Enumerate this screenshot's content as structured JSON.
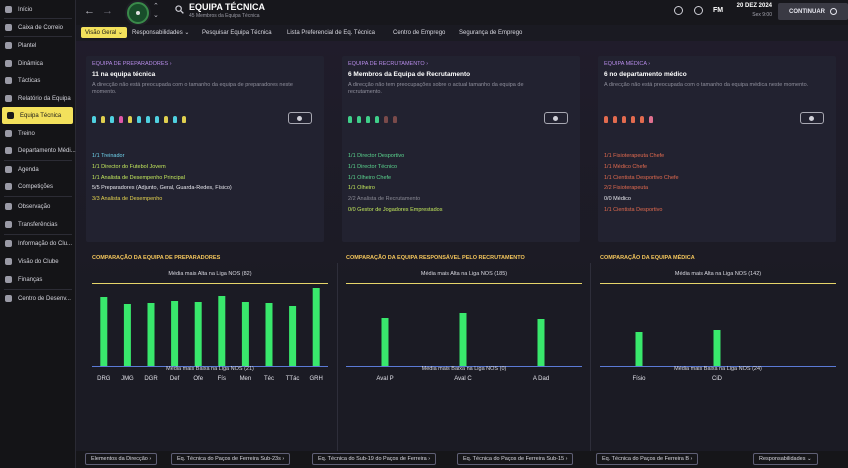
{
  "sidebar": {
    "items": [
      {
        "label": "Início",
        "icon": "home-icon"
      },
      {
        "label": "Caixa de Correio",
        "icon": "mail-icon"
      },
      {
        "label": "Plantel",
        "icon": "shirt-icon"
      },
      {
        "label": "Dinâmica",
        "icon": "dynamics-icon"
      },
      {
        "label": "Tácticas",
        "icon": "tactics-icon"
      },
      {
        "label": "Relatório da Equipa",
        "icon": "report-icon"
      },
      {
        "label": "Equipa Técnica",
        "icon": "staff-icon"
      },
      {
        "label": "Treino",
        "icon": "training-icon"
      },
      {
        "label": "Departamento Médi...",
        "icon": "medical-icon"
      },
      {
        "label": "Agenda",
        "icon": "calendar-icon"
      },
      {
        "label": "Competições",
        "icon": "trophy-icon"
      },
      {
        "label": "Observação",
        "icon": "scouting-icon"
      },
      {
        "label": "Transferências",
        "icon": "transfer-icon"
      },
      {
        "label": "Informação do Clu...",
        "icon": "club-info-icon"
      },
      {
        "label": "Visão do Clube",
        "icon": "club-vision-icon"
      },
      {
        "label": "Finanças",
        "icon": "finance-icon"
      },
      {
        "label": "Centro de Desenv...",
        "icon": "development-icon"
      }
    ]
  },
  "header": {
    "title": "EQUIPA TÉCNICA",
    "subtitle": "45 Membros da Equipa Técnica",
    "date": "20 DEZ 2024",
    "day": "Sex 9:00",
    "continue_label": "CONTINUAR",
    "fm_logo": "FM"
  },
  "tabs": [
    {
      "label": "Visão Geral ⌄"
    },
    {
      "label": "Responsabilidades ⌄"
    },
    {
      "label": "Pesquisar Equipa Técnica"
    },
    {
      "label": "Lista Preferencial de Eq. Técnica"
    },
    {
      "label": "Centro de Emprego"
    },
    {
      "label": "Segurança de Emprego"
    }
  ],
  "cards": [
    {
      "link": "EQUIPA DE PREPARADORES ›",
      "link_color": "#b58ae6",
      "title": "11 na equipa técnica",
      "desc": "A direcção não está preocupada com o tamanho da equipa de preparadores neste momento.",
      "avatar_colors": [
        "#4fd1e0",
        "#e0d04f",
        "#4fd1e0",
        "#e057a8",
        "#e0d04f",
        "#4fd1e0",
        "#4fd1e0",
        "#4fd1e0",
        "#e0d04f",
        "#4fd1e0",
        "#e0d04f"
      ],
      "lines": [
        {
          "text": "1/1 Treinador",
          "color": "#6fd3ec"
        },
        {
          "text": "1/1 Director do Futebol Jovem",
          "color": "#c3e85c"
        },
        {
          "text": "1/1 Analista de Desempenho Principal",
          "color": "#c3e85c"
        },
        {
          "text": "5/5 Preparadores (Adjunto, Geral, Guarda-Redes, Físico)",
          "color": "#e8e8ee"
        },
        {
          "text": "3/3 Analista de Desempenho",
          "color": "#e6d44f"
        }
      ]
    },
    {
      "link": "EQUIPA DE RECRUTAMENTO ›",
      "link_color": "#b58ae6",
      "title": "6 Membros da Equipa de Recrutamento",
      "desc": "A direcção não tem preocupações sobre o actual tamanho da equipa de recrutamento.",
      "avatar_colors": [
        "#3fd08a",
        "#3fd08a",
        "#3fd08a",
        "#3fd08a",
        "#7a4a4a",
        "#7a4a4a"
      ],
      "lines": [
        {
          "text": "1/1 Director Desportivo",
          "color": "#5bd68f"
        },
        {
          "text": "1/1 Director Técnico",
          "color": "#5bd68f"
        },
        {
          "text": "1/1 Olheiro Chefe",
          "color": "#5bd68f"
        },
        {
          "text": "1/1 Olheiro",
          "color": "#c3e85c"
        },
        {
          "text": "2/2 Analista de Recrutamento",
          "color": "#8a8a94"
        },
        {
          "text": "0/0 Gestor de Jogadores Emprestados",
          "color": "#c3e85c"
        }
      ]
    },
    {
      "link": "EQUIPA MÉDICA ›",
      "link_color": "#b58ae6",
      "title": "6 no departamento médico",
      "desc": "A direcção não está preocupada com o tamanho da equipa médica neste momento.",
      "avatar_colors": [
        "#e36b4f",
        "#e36b4f",
        "#e36b4f",
        "#e36b4f",
        "#e36b4f",
        "#e0708f"
      ],
      "lines": [
        {
          "text": "1/1 Fisioterapeuta Chefe",
          "color": "#e36b4f"
        },
        {
          "text": "1/1 Médico Chefe",
          "color": "#e36b4f"
        },
        {
          "text": "1/1 Cientista Desportivo Chefe",
          "color": "#e36b4f"
        },
        {
          "text": "2/2 Fisioterapeuta",
          "color": "#e36b4f"
        },
        {
          "text": "0/0 Médico",
          "color": "#e8e8ee"
        },
        {
          "text": "1/1 Cientista Desportivo",
          "color": "#e36b4f"
        }
      ]
    }
  ],
  "comparisons": [
    {
      "title": "COMPARAÇÃO DA EQUIPA DE PREPARADORES",
      "avg_high": "Média mais Alta na Liga NOS (82)",
      "avg_low": "Média mais Baixa na Liga NOS (21)"
    },
    {
      "title": "COMPARAÇÃO DA EQUIPA RESPONSÁVEL PELO RECRUTAMENTO",
      "avg_high": "Média mais Alta na Liga NOS (185)",
      "avg_low": "Média mais Baixa na Liga NOS (0)"
    },
    {
      "title": "COMPARAÇÃO DA EQUIPA MÉDICA",
      "avg_high": "Média mais Alta na Liga NOS (142)",
      "avg_low": "Média mais Baixa na Liga NOS (24)"
    }
  ],
  "chart_data": [
    {
      "type": "bar",
      "categories": [
        "DRG",
        "JMG",
        "DGR",
        "Def",
        "Ofe",
        "Fís",
        "Men",
        "Téc",
        "TTác",
        "GRH"
      ],
      "values": [
        69,
        62,
        63,
        65,
        64,
        70,
        64,
        63,
        60,
        78
      ],
      "ylim": [
        0,
        100
      ],
      "bar_color": "#39e86c"
    },
    {
      "type": "bar",
      "categories": [
        "Aval P",
        "Aval C",
        "A Dad"
      ],
      "values": [
        48,
        53,
        47
      ],
      "ylim": [
        0,
        100
      ],
      "bar_color": "#39e86c"
    },
    {
      "type": "bar",
      "categories": [
        "Físio",
        "CiD"
      ],
      "values": [
        34,
        36
      ],
      "ylim": [
        0,
        100
      ],
      "bar_color": "#39e86c"
    }
  ],
  "footer": [
    {
      "label": "Elementos da Direcção ›"
    },
    {
      "label": "Eq. Técnica do Paços de Ferreira Sub-23s ›"
    },
    {
      "label": "Eq. Técnica do Sub-19 do Paços de Ferreira ›"
    },
    {
      "label": "Eq. Técnica do Paços de Ferreira Sub-15 ›"
    },
    {
      "label": "Eq. Técnica do Paços de Ferreira B ›"
    },
    {
      "label": "Responsabilidades ⌄"
    }
  ]
}
